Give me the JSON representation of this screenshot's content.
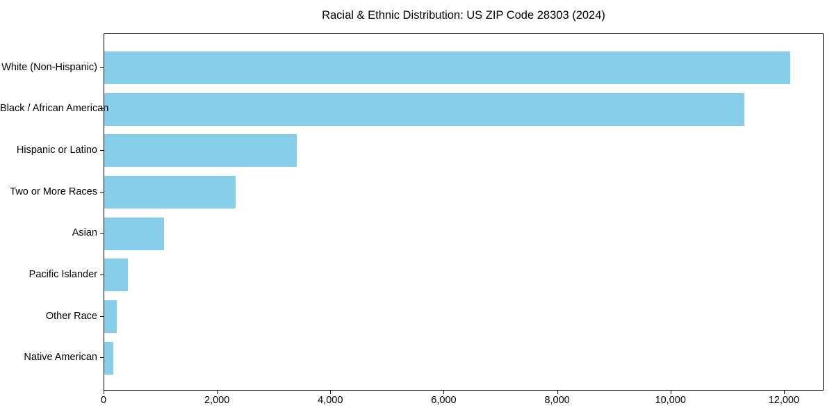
{
  "chart_data": {
    "type": "bar",
    "orientation": "horizontal",
    "title": "Racial & Ethnic Distribution: US ZIP Code 28303 (2024)",
    "categories": [
      "White (Non-Hispanic)",
      "Black / African American",
      "Hispanic or Latino",
      "Two or More Races",
      "Asian",
      "Pacific Islander",
      "Other Race",
      "Native American"
    ],
    "values": [
      12100,
      11290,
      3390,
      2320,
      1055,
      420,
      220,
      160
    ],
    "xlabel": "",
    "ylabel": "",
    "xlim": [
      0,
      12700
    ],
    "xticks": [
      0,
      2000,
      4000,
      6000,
      8000,
      10000,
      12000
    ],
    "xtick_labels": [
      "0",
      "2,000",
      "4,000",
      "6,000",
      "8,000",
      "10,000",
      "12,000"
    ],
    "bar_color": "#87CEEB",
    "frame": "full-box",
    "grid": false,
    "legend": "none"
  }
}
